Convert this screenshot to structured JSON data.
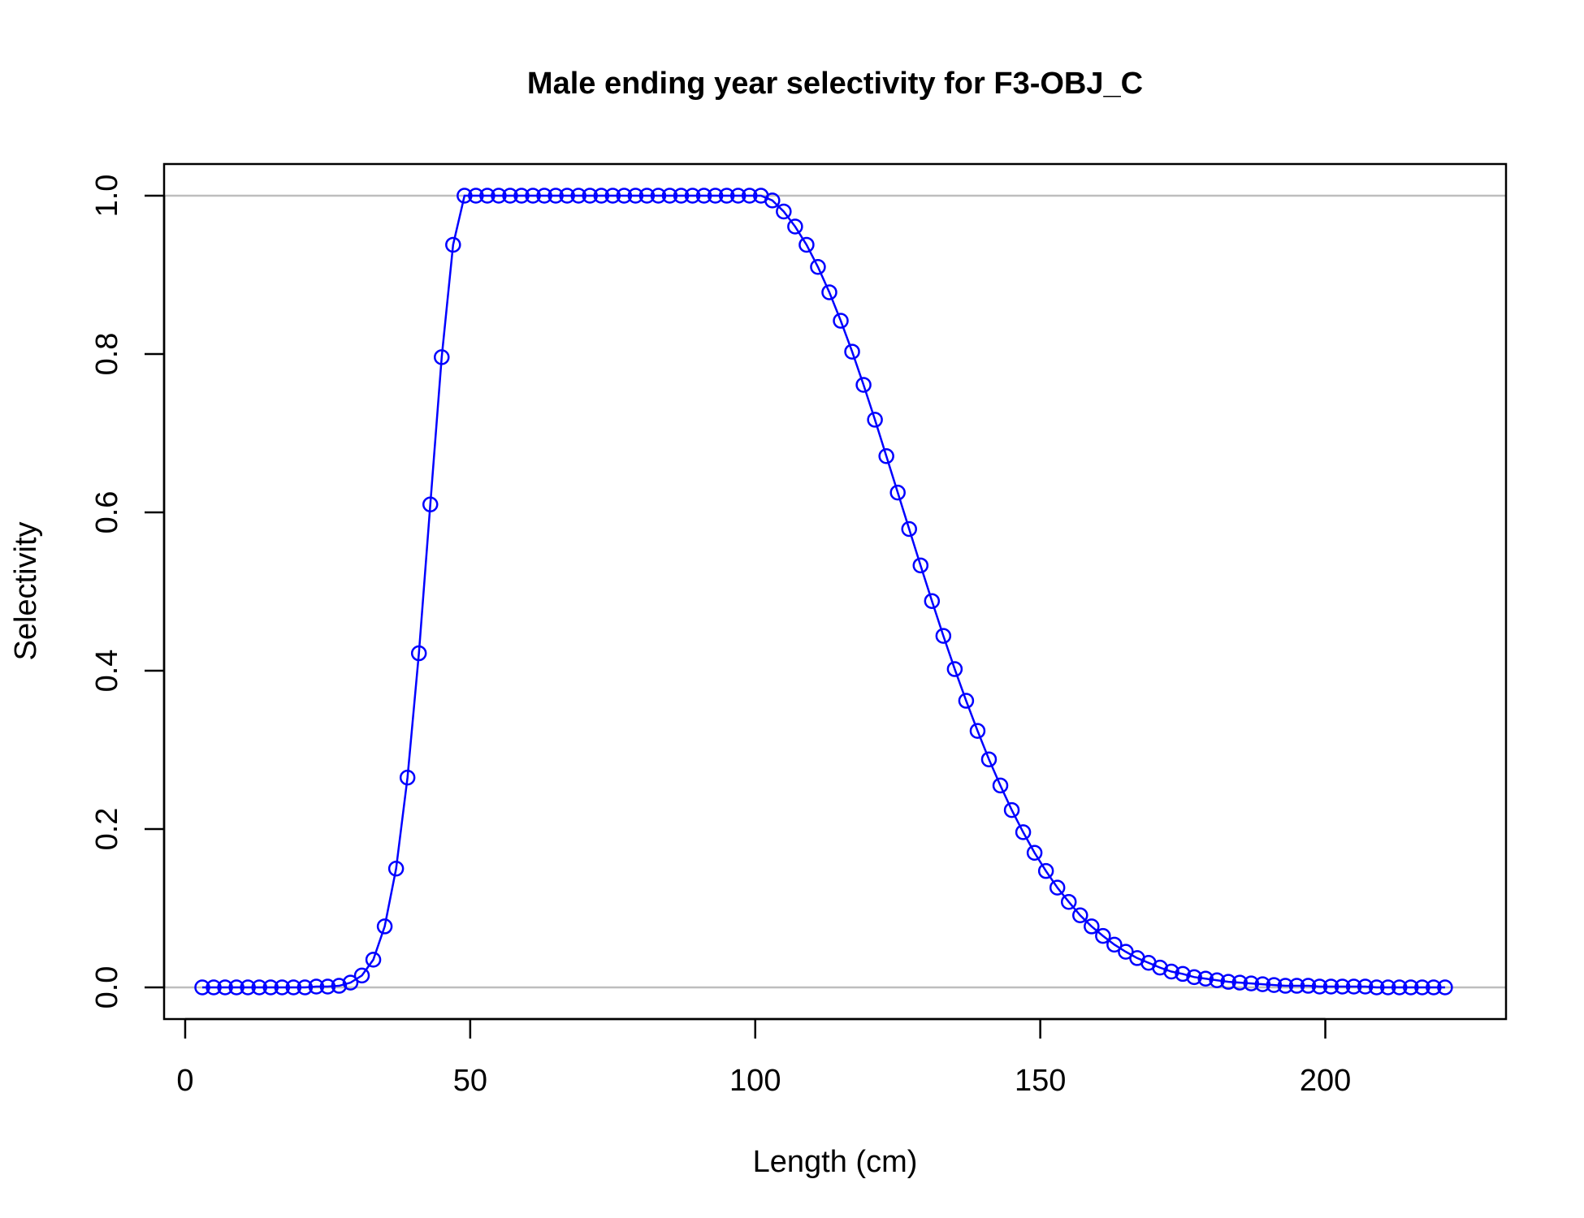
{
  "chart_data": {
    "type": "line",
    "title": "Male ending year selectivity for F3-OBJ_C",
    "xlabel": "Length (cm)",
    "ylabel": "Selectivity",
    "xlim": [
      -3.7,
      231.7
    ],
    "ylim": [
      -0.04,
      1.04
    ],
    "x_ticks": [
      0,
      50,
      100,
      150,
      200
    ],
    "x_tick_labels": [
      "0",
      "50",
      "100",
      "150",
      "200"
    ],
    "y_ticks": [
      0.0,
      0.2,
      0.4,
      0.6,
      0.8,
      1.0
    ],
    "y_tick_labels": [
      "0.0",
      "0.2",
      "0.4",
      "0.6",
      "0.8",
      "1.0"
    ],
    "reference_lines": [
      0,
      1
    ],
    "reference_line_color": "#bebebe",
    "grid": false,
    "legend": "none",
    "series": [
      {
        "color": "#0000ff",
        "marker": "open-circle",
        "x": [
          3,
          5,
          7,
          9,
          11,
          13,
          15,
          17,
          19,
          21,
          23,
          25,
          27,
          29,
          31,
          33,
          35,
          37,
          39,
          41,
          43,
          45,
          47,
          49,
          51,
          53,
          55,
          57,
          59,
          61,
          63,
          65,
          67,
          69,
          71,
          73,
          75,
          77,
          79,
          81,
          83,
          85,
          87,
          89,
          91,
          93,
          95,
          97,
          99,
          101,
          103,
          105,
          107,
          109,
          111,
          113,
          115,
          117,
          119,
          121,
          123,
          125,
          127,
          129,
          131,
          133,
          135,
          137,
          139,
          141,
          143,
          145,
          147,
          149,
          151,
          153,
          155,
          157,
          159,
          161,
          163,
          165,
          167,
          169,
          171,
          173,
          175,
          177,
          179,
          181,
          183,
          185,
          187,
          189,
          191,
          193,
          195,
          197,
          199,
          201,
          203,
          205,
          207,
          209,
          211,
          213,
          215,
          217,
          219,
          221
        ],
        "y": [
          0,
          0,
          0,
          0,
          0,
          0,
          0,
          0,
          0,
          0,
          0.001,
          0.001,
          0.002,
          0.006,
          0.015,
          0.035,
          0.077,
          0.15,
          0.265,
          0.422,
          0.61,
          0.796,
          0.938,
          1,
          1,
          1,
          1,
          1,
          1,
          1,
          1,
          1,
          1,
          1,
          1,
          1,
          1,
          1,
          1,
          1,
          1,
          1,
          1,
          1,
          1,
          1,
          1,
          1,
          1,
          1,
          0.994,
          0.98,
          0.961,
          0.938,
          0.91,
          0.878,
          0.842,
          0.803,
          0.761,
          0.717,
          0.671,
          0.625,
          0.579,
          0.533,
          0.488,
          0.444,
          0.402,
          0.362,
          0.324,
          0.288,
          0.255,
          0.224,
          0.196,
          0.17,
          0.147,
          0.126,
          0.108,
          0.091,
          0.077,
          0.065,
          0.054,
          0.045,
          0.037,
          0.031,
          0.025,
          0.02,
          0.017,
          0.013,
          0.011,
          0.009,
          0.007,
          0.006,
          0.005,
          0.004,
          0.003,
          0.002,
          0.002,
          0.002,
          0.001,
          0.001,
          0.001,
          0.001,
          0.001,
          0,
          0,
          0,
          0,
          0,
          0,
          0
        ]
      }
    ]
  }
}
